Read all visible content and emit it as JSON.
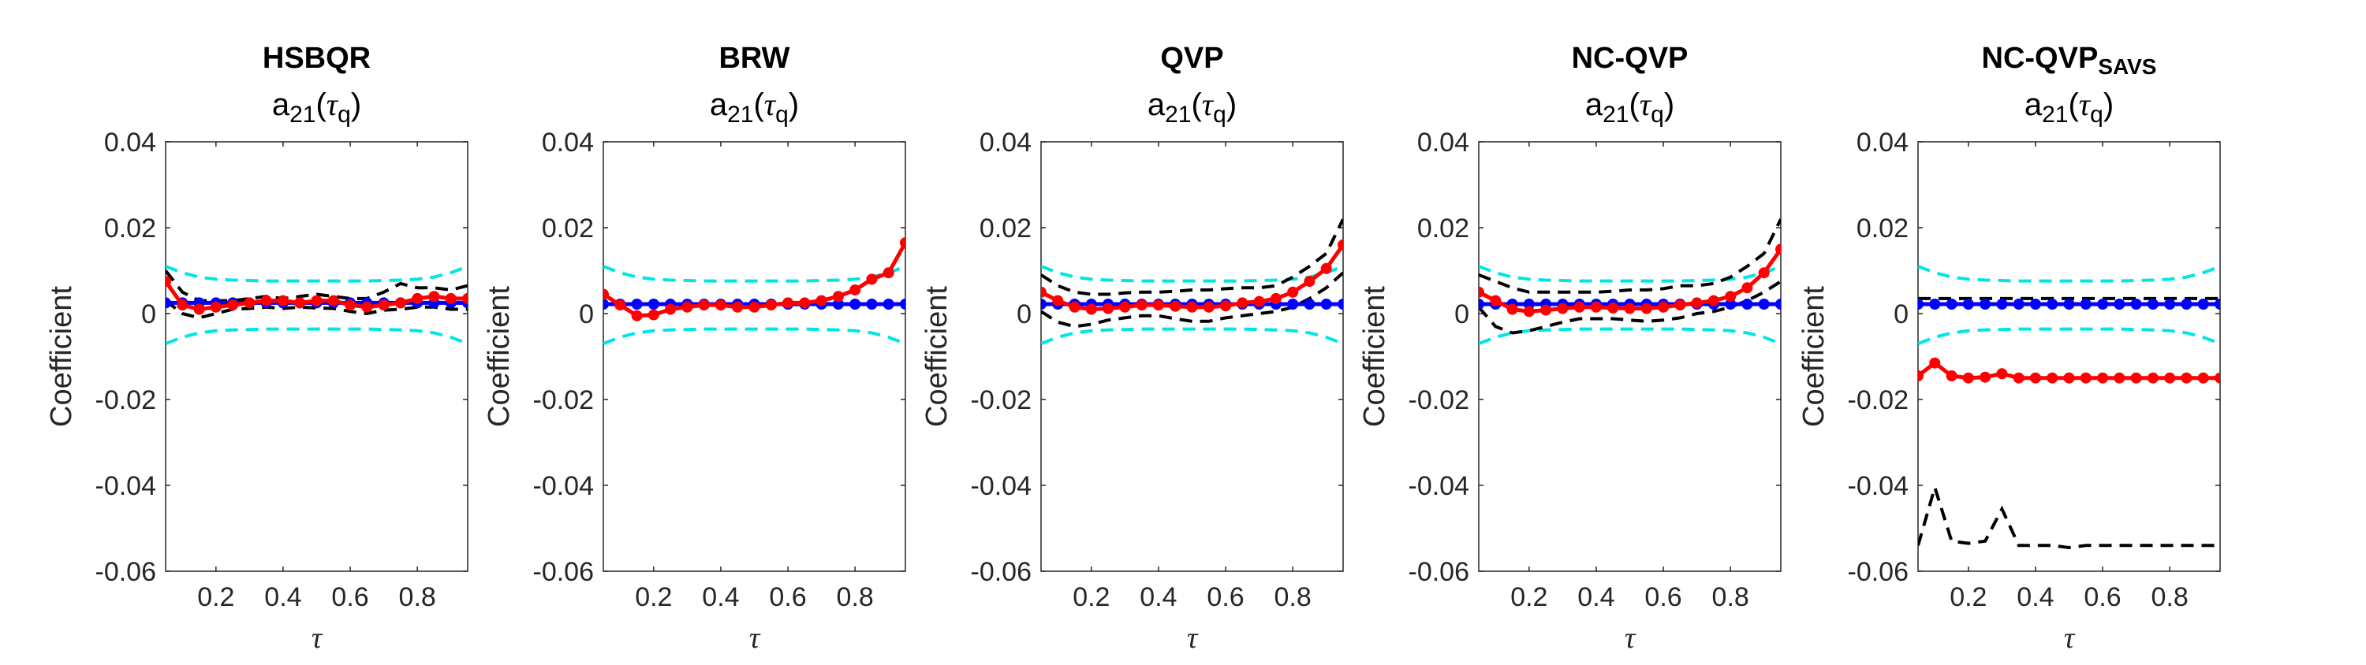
{
  "chart_data": [
    {
      "type": "line",
      "title": "HSBQR",
      "subtitle_base": "a",
      "subtitle_sub": "21",
      "subtitle_open": "(",
      "subtitle_tau": "τ",
      "subtitle_tau_sub": "q",
      "subtitle_close": ")",
      "xlabel": "τ",
      "ylabel": "Coefficient",
      "ylim": [
        -0.06,
        0.04
      ],
      "xlim": [
        0.05,
        0.95
      ],
      "yticks": [
        "0.04",
        "0.02",
        "0",
        "-0.02",
        "-0.04",
        "-0.06"
      ],
      "xticks": [
        "0.2",
        "0.4",
        "0.6",
        "0.8"
      ],
      "x": [
        0.05,
        0.1,
        0.15,
        0.2,
        0.25,
        0.3,
        0.35,
        0.4,
        0.45,
        0.5,
        0.55,
        0.6,
        0.65,
        0.7,
        0.75,
        0.8,
        0.85,
        0.9,
        0.95
      ],
      "series": [
        {
          "color": "#00e5e5",
          "style": "dashed",
          "marker": false,
          "values": [
            0.011,
            0.0095,
            0.0085,
            0.008,
            0.0078,
            0.0077,
            0.0076,
            0.0076,
            0.0076,
            0.0076,
            0.0076,
            0.0076,
            0.0076,
            0.0077,
            0.0078,
            0.008,
            0.0085,
            0.0095,
            0.011
          ]
        },
        {
          "color": "#00e5e5",
          "style": "dashed",
          "marker": false,
          "values": [
            -0.007,
            -0.0055,
            -0.0045,
            -0.004,
            -0.0038,
            -0.0037,
            -0.0036,
            -0.0036,
            -0.0036,
            -0.0036,
            -0.0036,
            -0.0036,
            -0.0036,
            -0.0037,
            -0.0038,
            -0.004,
            -0.0045,
            -0.0055,
            -0.007
          ]
        },
        {
          "color": "#000000",
          "style": "dashed",
          "marker": false,
          "values": [
            0.01,
            0.005,
            0.003,
            0.003,
            0.003,
            0.0035,
            0.004,
            0.0035,
            0.004,
            0.0045,
            0.004,
            0.0035,
            0.0035,
            0.005,
            0.007,
            0.006,
            0.006,
            0.0055,
            0.0065
          ]
        },
        {
          "color": "#000000",
          "style": "dashed",
          "marker": false,
          "values": [
            0.003,
            0.0,
            -0.001,
            0.0,
            0.001,
            0.0012,
            0.0015,
            0.0012,
            0.0015,
            0.0013,
            0.0012,
            0.0005,
            0.0,
            0.0008,
            0.001,
            0.0015,
            0.0015,
            0.001,
            0.001
          ]
        },
        {
          "color": "#0000ff",
          "style": "solid",
          "marker": true,
          "values": [
            0.0025,
            0.0025,
            0.0025,
            0.0025,
            0.0025,
            0.0025,
            0.0025,
            0.0025,
            0.0025,
            0.0025,
            0.0025,
            0.0025,
            0.0025,
            0.0025,
            0.0025,
            0.0025,
            0.0025,
            0.0025,
            0.0025
          ]
        },
        {
          "color": "#ff0000",
          "style": "solid",
          "marker": true,
          "values": [
            0.0075,
            0.002,
            0.001,
            0.0015,
            0.002,
            0.0025,
            0.003,
            0.003,
            0.0025,
            0.003,
            0.003,
            0.002,
            0.0015,
            0.002,
            0.0025,
            0.0035,
            0.004,
            0.0035,
            0.0035
          ]
        }
      ]
    },
    {
      "type": "line",
      "title": "BRW",
      "subtitle_base": "a",
      "subtitle_sub": "21",
      "subtitle_open": "(",
      "subtitle_tau": "τ",
      "subtitle_tau_sub": "q",
      "subtitle_close": ")",
      "xlabel": "τ",
      "ylabel": "Coefficient",
      "ylim": [
        -0.06,
        0.04
      ],
      "xlim": [
        0.05,
        0.95
      ],
      "yticks": [
        "0.04",
        "0.02",
        "0",
        "-0.02",
        "-0.04",
        "-0.06"
      ],
      "xticks": [
        "0.2",
        "0.4",
        "0.6",
        "0.8"
      ],
      "x": [
        0.05,
        0.1,
        0.15,
        0.2,
        0.25,
        0.3,
        0.35,
        0.4,
        0.45,
        0.5,
        0.55,
        0.6,
        0.65,
        0.7,
        0.75,
        0.8,
        0.85,
        0.9,
        0.95
      ],
      "series": [
        {
          "color": "#00e5e5",
          "style": "dashed",
          "marker": false,
          "values": [
            0.011,
            0.0095,
            0.0085,
            0.008,
            0.0078,
            0.0077,
            0.0076,
            0.0076,
            0.0076,
            0.0076,
            0.0076,
            0.0076,
            0.0076,
            0.0077,
            0.0078,
            0.008,
            0.0085,
            0.0095,
            0.011
          ]
        },
        {
          "color": "#00e5e5",
          "style": "dashed",
          "marker": false,
          "values": [
            -0.007,
            -0.0055,
            -0.0045,
            -0.004,
            -0.0038,
            -0.0037,
            -0.0036,
            -0.0036,
            -0.0036,
            -0.0036,
            -0.0036,
            -0.0036,
            -0.0036,
            -0.0037,
            -0.0038,
            -0.004,
            -0.0045,
            -0.0055,
            -0.007
          ]
        },
        {
          "color": "#0000ff",
          "style": "solid",
          "marker": true,
          "values": [
            0.0022,
            0.0022,
            0.0022,
            0.0022,
            0.0022,
            0.0022,
            0.0022,
            0.0022,
            0.0022,
            0.0022,
            0.0022,
            0.0022,
            0.0022,
            0.0022,
            0.0022,
            0.0022,
            0.0022,
            0.0022,
            0.0022
          ]
        },
        {
          "color": "#ff0000",
          "style": "solid",
          "marker": true,
          "values": [
            0.0045,
            0.002,
            -0.0005,
            -0.0003,
            0.001,
            0.0015,
            0.002,
            0.002,
            0.0015,
            0.0015,
            0.002,
            0.0025,
            0.0025,
            0.003,
            0.004,
            0.0055,
            0.008,
            0.0095,
            0.0165
          ]
        }
      ]
    },
    {
      "type": "line",
      "title": "QVP",
      "subtitle_base": "a",
      "subtitle_sub": "21",
      "subtitle_open": "(",
      "subtitle_tau": "τ",
      "subtitle_tau_sub": "q",
      "subtitle_close": ")",
      "xlabel": "τ",
      "ylabel": "Coefficient",
      "ylim": [
        -0.06,
        0.04
      ],
      "xlim": [
        0.05,
        0.95
      ],
      "yticks": [
        "0.04",
        "0.02",
        "0",
        "-0.02",
        "-0.04",
        "-0.06"
      ],
      "xticks": [
        "0.2",
        "0.4",
        "0.6",
        "0.8"
      ],
      "x": [
        0.05,
        0.1,
        0.15,
        0.2,
        0.25,
        0.3,
        0.35,
        0.4,
        0.45,
        0.5,
        0.55,
        0.6,
        0.65,
        0.7,
        0.75,
        0.8,
        0.85,
        0.9,
        0.95
      ],
      "series": [
        {
          "color": "#00e5e5",
          "style": "dashed",
          "marker": false,
          "values": [
            0.011,
            0.0095,
            0.0085,
            0.008,
            0.0078,
            0.0077,
            0.0076,
            0.0076,
            0.0076,
            0.0076,
            0.0076,
            0.0076,
            0.0076,
            0.0077,
            0.0078,
            0.008,
            0.0085,
            0.0095,
            0.011
          ]
        },
        {
          "color": "#00e5e5",
          "style": "dashed",
          "marker": false,
          "values": [
            -0.007,
            -0.0055,
            -0.0045,
            -0.004,
            -0.0038,
            -0.0037,
            -0.0036,
            -0.0036,
            -0.0036,
            -0.0036,
            -0.0036,
            -0.0036,
            -0.0036,
            -0.0037,
            -0.0038,
            -0.004,
            -0.0045,
            -0.0055,
            -0.007
          ]
        },
        {
          "color": "#000000",
          "style": "dashed",
          "marker": false,
          "values": [
            0.009,
            0.0065,
            0.005,
            0.0045,
            0.0045,
            0.0048,
            0.005,
            0.005,
            0.0052,
            0.0055,
            0.0055,
            0.0058,
            0.006,
            0.006,
            0.0065,
            0.0085,
            0.011,
            0.014,
            0.022
          ]
        },
        {
          "color": "#000000",
          "style": "dashed",
          "marker": false,
          "values": [
            0.0005,
            -0.002,
            -0.003,
            -0.0025,
            -0.0015,
            -0.001,
            -0.0005,
            -0.0005,
            -0.0012,
            -0.0018,
            -0.0018,
            -0.001,
            -0.0005,
            0.0,
            0.0005,
            0.0015,
            0.0035,
            0.006,
            0.0095
          ]
        },
        {
          "color": "#0000ff",
          "style": "solid",
          "marker": true,
          "values": [
            0.0022,
            0.0022,
            0.0022,
            0.0022,
            0.0022,
            0.0022,
            0.0022,
            0.0022,
            0.0022,
            0.0022,
            0.0022,
            0.0022,
            0.0022,
            0.0022,
            0.0022,
            0.0022,
            0.0022,
            0.0022,
            0.0022
          ]
        },
        {
          "color": "#ff0000",
          "style": "solid",
          "marker": true,
          "values": [
            0.005,
            0.003,
            0.0015,
            0.001,
            0.0012,
            0.0015,
            0.002,
            0.002,
            0.0017,
            0.0015,
            0.0015,
            0.0018,
            0.0025,
            0.0028,
            0.0035,
            0.005,
            0.0075,
            0.0105,
            0.016
          ]
        }
      ]
    },
    {
      "type": "line",
      "title": "NC-QVP",
      "subtitle_base": "a",
      "subtitle_sub": "21",
      "subtitle_open": "(",
      "subtitle_tau": "τ",
      "subtitle_tau_sub": "q",
      "subtitle_close": ")",
      "xlabel": "τ",
      "ylabel": "Coefficient",
      "ylim": [
        -0.06,
        0.04
      ],
      "xlim": [
        0.05,
        0.95
      ],
      "yticks": [
        "0.04",
        "0.02",
        "0",
        "-0.02",
        "-0.04",
        "-0.06"
      ],
      "xticks": [
        "0.2",
        "0.4",
        "0.6",
        "0.8"
      ],
      "x": [
        0.05,
        0.1,
        0.15,
        0.2,
        0.25,
        0.3,
        0.35,
        0.4,
        0.45,
        0.5,
        0.55,
        0.6,
        0.65,
        0.7,
        0.75,
        0.8,
        0.85,
        0.9,
        0.95
      ],
      "series": [
        {
          "color": "#00e5e5",
          "style": "dashed",
          "marker": false,
          "values": [
            0.011,
            0.0095,
            0.0085,
            0.008,
            0.0078,
            0.0077,
            0.0076,
            0.0076,
            0.0076,
            0.0076,
            0.0076,
            0.0076,
            0.0076,
            0.0077,
            0.0078,
            0.008,
            0.0085,
            0.0095,
            0.011
          ]
        },
        {
          "color": "#00e5e5",
          "style": "dashed",
          "marker": false,
          "values": [
            -0.007,
            -0.0055,
            -0.0045,
            -0.004,
            -0.0038,
            -0.0037,
            -0.0036,
            -0.0036,
            -0.0036,
            -0.0036,
            -0.0036,
            -0.0036,
            -0.0036,
            -0.0037,
            -0.0038,
            -0.004,
            -0.0045,
            -0.0055,
            -0.007
          ]
        },
        {
          "color": "#000000",
          "style": "dashed",
          "marker": false,
          "values": [
            0.009,
            0.0075,
            0.006,
            0.005,
            0.005,
            0.005,
            0.005,
            0.005,
            0.0052,
            0.0055,
            0.0055,
            0.0058,
            0.0065,
            0.0065,
            0.007,
            0.0085,
            0.011,
            0.014,
            0.022
          ]
        },
        {
          "color": "#000000",
          "style": "dashed",
          "marker": false,
          "values": [
            0.0015,
            -0.003,
            -0.0045,
            -0.004,
            -0.003,
            -0.002,
            -0.0012,
            -0.0012,
            -0.0012,
            -0.0015,
            -0.0018,
            -0.0015,
            -0.001,
            0.0,
            0.0005,
            0.0015,
            0.003,
            0.005,
            0.0075
          ]
        },
        {
          "color": "#0000ff",
          "style": "solid",
          "marker": true,
          "values": [
            0.0022,
            0.0022,
            0.0022,
            0.0022,
            0.0022,
            0.0022,
            0.0022,
            0.0022,
            0.0022,
            0.0022,
            0.0022,
            0.0022,
            0.0022,
            0.0022,
            0.0022,
            0.0022,
            0.0022,
            0.0022,
            0.0022
          ]
        },
        {
          "color": "#ff0000",
          "style": "solid",
          "marker": true,
          "values": [
            0.005,
            0.003,
            0.001,
            0.0005,
            0.0008,
            0.0012,
            0.0015,
            0.0015,
            0.0013,
            0.0012,
            0.0012,
            0.0015,
            0.002,
            0.0025,
            0.003,
            0.004,
            0.006,
            0.0095,
            0.015
          ]
        }
      ]
    },
    {
      "type": "line",
      "title": "NC-QVP",
      "title_sub": "SAVS",
      "subtitle_base": "a",
      "subtitle_sub": "21",
      "subtitle_open": "(",
      "subtitle_tau": "τ",
      "subtitle_tau_sub": "q",
      "subtitle_close": ")",
      "xlabel": "τ",
      "ylabel": "Coefficient",
      "ylim": [
        -0.06,
        0.04
      ],
      "xlim": [
        0.05,
        0.95
      ],
      "yticks": [
        "0.04",
        "0.02",
        "0",
        "-0.02",
        "-0.04",
        "-0.06"
      ],
      "xticks": [
        "0.2",
        "0.4",
        "0.6",
        "0.8"
      ],
      "x": [
        0.05,
        0.1,
        0.15,
        0.2,
        0.25,
        0.3,
        0.35,
        0.4,
        0.45,
        0.5,
        0.55,
        0.6,
        0.65,
        0.7,
        0.75,
        0.8,
        0.85,
        0.9,
        0.95
      ],
      "series": [
        {
          "color": "#00e5e5",
          "style": "dashed",
          "marker": false,
          "values": [
            0.011,
            0.0095,
            0.0085,
            0.008,
            0.0078,
            0.0077,
            0.0076,
            0.0076,
            0.0076,
            0.0076,
            0.0076,
            0.0076,
            0.0076,
            0.0077,
            0.0078,
            0.008,
            0.0085,
            0.0095,
            0.011
          ]
        },
        {
          "color": "#00e5e5",
          "style": "dashed",
          "marker": false,
          "values": [
            -0.007,
            -0.0055,
            -0.0045,
            -0.004,
            -0.0038,
            -0.0037,
            -0.0036,
            -0.0036,
            -0.0036,
            -0.0036,
            -0.0036,
            -0.0036,
            -0.0036,
            -0.0037,
            -0.0038,
            -0.004,
            -0.0045,
            -0.0055,
            -0.007
          ]
        },
        {
          "color": "#000000",
          "style": "dashed",
          "marker": false,
          "values": [
            0.0035,
            0.0035,
            0.0035,
            0.0035,
            0.0035,
            0.0035,
            0.0035,
            0.0035,
            0.0035,
            0.0035,
            0.0035,
            0.0035,
            0.0035,
            0.0035,
            0.0035,
            0.0035,
            0.0035,
            0.0035,
            0.0035
          ]
        },
        {
          "color": "#000000",
          "style": "dashed",
          "marker": false,
          "values": [
            -0.054,
            -0.0405,
            -0.053,
            -0.0535,
            -0.053,
            -0.0455,
            -0.054,
            -0.054,
            -0.054,
            -0.0545,
            -0.054,
            -0.054,
            -0.054,
            -0.054,
            -0.054,
            -0.054,
            -0.054,
            -0.054,
            -0.054
          ]
        },
        {
          "color": "#0000ff",
          "style": "solid",
          "marker": true,
          "values": [
            0.0022,
            0.0022,
            0.0022,
            0.0022,
            0.0022,
            0.0022,
            0.0022,
            0.0022,
            0.0022,
            0.0022,
            0.0022,
            0.0022,
            0.0022,
            0.0022,
            0.0022,
            0.0022,
            0.0022,
            0.0022,
            0.0022
          ]
        },
        {
          "color": "#ff0000",
          "style": "solid",
          "marker": true,
          "values": [
            -0.0145,
            -0.0115,
            -0.0145,
            -0.015,
            -0.0148,
            -0.014,
            -0.015,
            -0.015,
            -0.015,
            -0.015,
            -0.015,
            -0.015,
            -0.015,
            -0.015,
            -0.015,
            -0.015,
            -0.015,
            -0.015,
            -0.015
          ]
        }
      ]
    }
  ]
}
